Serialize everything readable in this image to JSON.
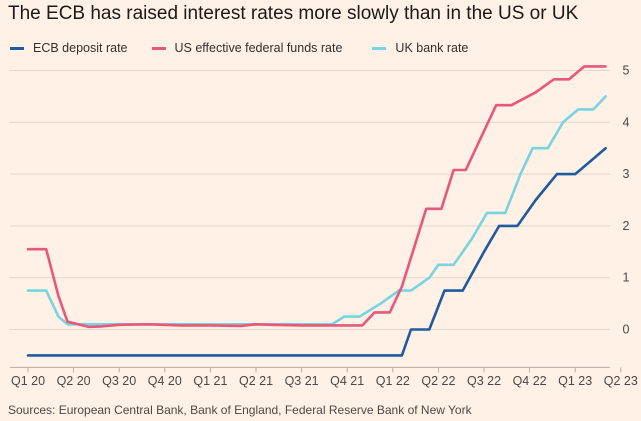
{
  "chart_data": {
    "type": "line",
    "title": "The ECB has raised interest rates more slowly than in the US or UK",
    "source": "Sources: European Central Bank, Bank of England, Federal Reserve Bank of New York",
    "xlabel": "",
    "ylabel": "",
    "x_ticks": [
      "Q1 20",
      "Q2 20",
      "Q3 20",
      "Q4 20",
      "Q1 21",
      "Q2 21",
      "Q3 21",
      "Q4 21",
      "Q1 22",
      "Q2 22",
      "Q3 22",
      "Q4 22",
      "Q1 23",
      "Q2 23"
    ],
    "y_ticks": [
      "0",
      "1",
      "2",
      "3",
      "4",
      "5"
    ],
    "ylim": [
      -0.5,
      5
    ],
    "grid": true,
    "legend_position": "top",
    "series": [
      {
        "name": "ECB deposit rate",
        "color": "#1f5aa0",
        "points": [
          [
            0,
            -0.5
          ],
          [
            12.3,
            -0.5
          ],
          [
            12.6,
            0
          ],
          [
            13.2,
            0
          ],
          [
            13.7,
            0.75
          ],
          [
            14.3,
            0.75
          ],
          [
            15.0,
            1.5
          ],
          [
            15.5,
            2.0
          ],
          [
            16.1,
            2.0
          ],
          [
            16.7,
            2.5
          ],
          [
            17.4,
            3.0
          ],
          [
            18.0,
            3.0
          ],
          [
            18.5,
            3.25
          ],
          [
            19.0,
            3.5
          ]
        ]
      },
      {
        "name": "US effective federal funds rate",
        "color": "#e8587b",
        "points": [
          [
            0,
            1.55
          ],
          [
            0.6,
            1.55
          ],
          [
            1.0,
            0.65
          ],
          [
            1.3,
            0.15
          ],
          [
            2.0,
            0.05
          ],
          [
            2.4,
            0.06
          ],
          [
            3.0,
            0.09
          ],
          [
            4.0,
            0.1
          ],
          [
            5.0,
            0.08
          ],
          [
            6.0,
            0.08
          ],
          [
            7.0,
            0.07
          ],
          [
            7.5,
            0.1
          ],
          [
            8.0,
            0.09
          ],
          [
            9.0,
            0.08
          ],
          [
            10.0,
            0.08
          ],
          [
            11.0,
            0.08
          ],
          [
            11.4,
            0.33
          ],
          [
            11.9,
            0.33
          ],
          [
            12.3,
            0.83
          ],
          [
            12.7,
            1.58
          ],
          [
            13.1,
            2.33
          ],
          [
            13.6,
            2.33
          ],
          [
            14.0,
            3.08
          ],
          [
            14.4,
            3.08
          ],
          [
            15.0,
            3.83
          ],
          [
            15.4,
            4.33
          ],
          [
            15.9,
            4.33
          ],
          [
            16.7,
            4.58
          ],
          [
            17.3,
            4.83
          ],
          [
            17.8,
            4.83
          ],
          [
            18.3,
            5.08
          ],
          [
            19.0,
            5.08
          ]
        ]
      },
      {
        "name": "UK bank rate",
        "color": "#77d4e0",
        "points": [
          [
            0,
            0.75
          ],
          [
            0.6,
            0.75
          ],
          [
            1.0,
            0.25
          ],
          [
            1.3,
            0.1
          ],
          [
            5.0,
            0.1
          ],
          [
            9.0,
            0.1
          ],
          [
            10.0,
            0.1
          ],
          [
            10.4,
            0.25
          ],
          [
            10.9,
            0.25
          ],
          [
            11.6,
            0.5
          ],
          [
            12.2,
            0.75
          ],
          [
            12.6,
            0.75
          ],
          [
            13.2,
            1.0
          ],
          [
            13.5,
            1.25
          ],
          [
            14.0,
            1.25
          ],
          [
            14.6,
            1.75
          ],
          [
            15.1,
            2.25
          ],
          [
            15.7,
            2.25
          ],
          [
            16.2,
            3.0
          ],
          [
            16.6,
            3.5
          ],
          [
            17.1,
            3.5
          ],
          [
            17.6,
            4.0
          ],
          [
            18.1,
            4.25
          ],
          [
            18.6,
            4.25
          ],
          [
            19.0,
            4.5
          ]
        ]
      }
    ]
  }
}
